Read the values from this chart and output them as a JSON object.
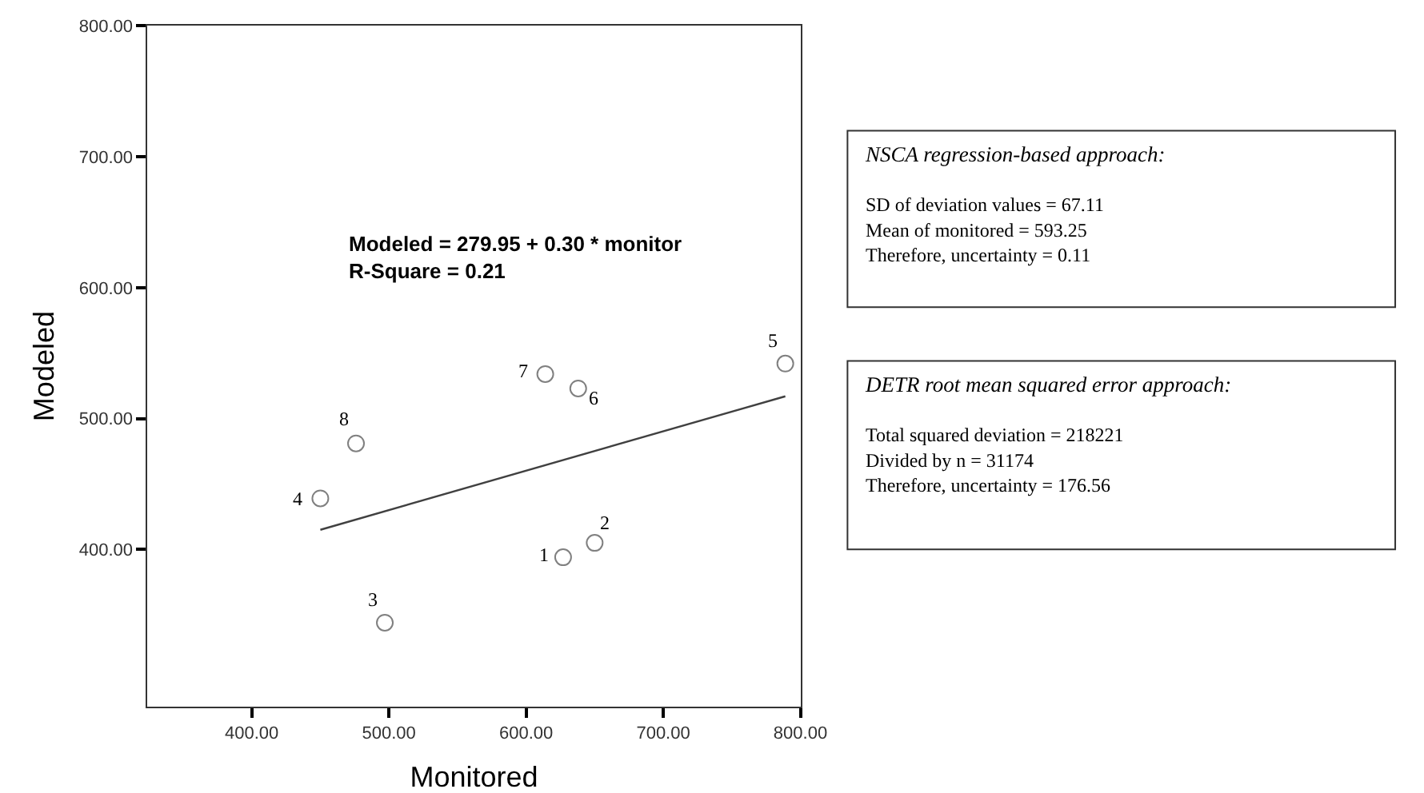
{
  "chart_data": {
    "type": "scatter",
    "xlabel": "Monitored",
    "ylabel": "Modeled",
    "xlim": [
      324,
      800
    ],
    "xticks": [
      {
        "value": 400,
        "label": "400.00"
      },
      {
        "value": 500,
        "label": "500.00"
      },
      {
        "value": 600,
        "label": "600.00"
      },
      {
        "value": 700,
        "label": "700.00"
      },
      {
        "value": 800,
        "label": "800.00"
      }
    ],
    "ylim": [
      280,
      800
    ],
    "yticks": [
      {
        "value": 400,
        "label": "400.00"
      },
      {
        "value": 500,
        "label": "500.00"
      },
      {
        "value": 600,
        "label": "600.00"
      },
      {
        "value": 700,
        "label": "700.00"
      },
      {
        "value": 800,
        "label": "800.00"
      }
    ],
    "marker": "circle",
    "series": [
      {
        "color": "#808080",
        "x": [
          627,
          650,
          497,
          450,
          789,
          638,
          614,
          476
        ],
        "values": [
          394,
          405,
          344,
          439,
          542,
          523,
          534,
          481
        ]
      },
      {
        "type": "line",
        "marker": "none",
        "color": "#404040",
        "x": [
          450,
          789
        ],
        "values": [
          415,
          517
        ]
      }
    ],
    "annotations": [
      {
        "text": "1",
        "x": 627,
        "y": 394
      },
      {
        "text": "2",
        "x": 650,
        "y": 405
      },
      {
        "text": "3",
        "x": 497,
        "y": 344
      },
      {
        "text": "4",
        "x": 450,
        "y": 439
      },
      {
        "text": "5",
        "x": 789,
        "y": 542
      },
      {
        "text": "6",
        "x": 638,
        "y": 523
      },
      {
        "text": "7",
        "x": 614,
        "y": 534
      },
      {
        "text": "8",
        "x": 476,
        "y": 481
      },
      "Modeled = 279.95 + 0.30 * monitor\nR-Square = 0.21",
      "NSCA regression-based approach:\n\nSD of deviation values = 67.11\nMean of monitored = 593.25\nTherefore, uncertainty = 0.11",
      "DETR root mean squared error approach:\n\nTotal squared deviation = 218221\nDivided by n = 31174\nTherefore, uncertainty = 176.56"
    ]
  }
}
